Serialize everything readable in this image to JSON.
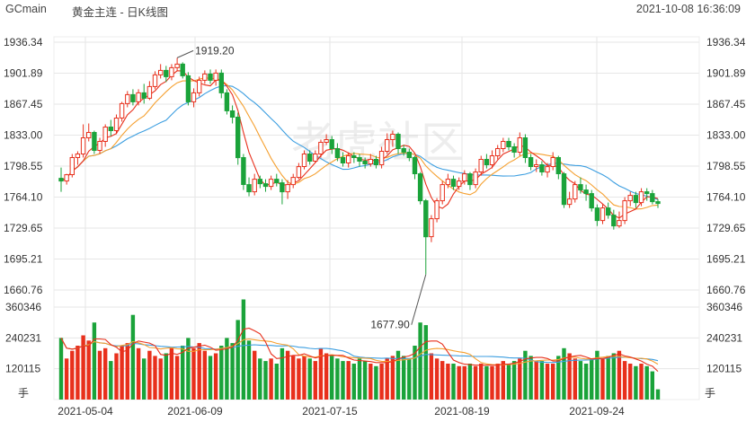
{
  "header": {
    "symbol": "GCmain",
    "name": "黄金主连 - 日K线图",
    "datetime": "2021-10-08 16:36:09"
  },
  "watermark": "老虎社区",
  "colors": {
    "up": "#e8301c",
    "down": "#1aa33a",
    "ma5": "#e8301c",
    "ma10": "#f5a030",
    "ma20": "#3c9ee0",
    "grid": "#e6e6e6"
  },
  "chart_data": {
    "type": "candlestick",
    "price_axis": {
      "ticks": [
        "1936.34",
        "1901.89",
        "1867.45",
        "1833.00",
        "1798.55",
        "1764.10",
        "1729.65",
        "1695.21",
        "1660.76"
      ],
      "min": 1660.76,
      "max": 1936.34
    },
    "volume_axis": {
      "ticks": [
        "360346",
        "240231",
        "120115"
      ],
      "unit": "手",
      "max": 360346
    },
    "date_labels": [
      "2021-05-04",
      "2021-06-09",
      "2021-07-15",
      "2021-08-19",
      "2021-09-24"
    ],
    "annotations": [
      {
        "text": "1919.20",
        "type": "high"
      },
      {
        "text": "1677.90",
        "type": "low"
      }
    ],
    "candles": [
      [
        1785,
        1782,
        1797,
        1770,
        240
      ],
      [
        1782,
        1789,
        1790,
        1778,
        160
      ],
      [
        1789,
        1808,
        1812,
        1786,
        190
      ],
      [
        1808,
        1812,
        1815,
        1800,
        210
      ],
      [
        1812,
        1830,
        1845,
        1808,
        250
      ],
      [
        1830,
        1836,
        1846,
        1826,
        230
      ],
      [
        1836,
        1816,
        1838,
        1812,
        300
      ],
      [
        1816,
        1826,
        1830,
        1812,
        190
      ],
      [
        1826,
        1842,
        1845,
        1820,
        200
      ],
      [
        1842,
        1838,
        1850,
        1832,
        150
      ],
      [
        1838,
        1852,
        1856,
        1834,
        180
      ],
      [
        1852,
        1868,
        1870,
        1848,
        210
      ],
      [
        1868,
        1878,
        1882,
        1864,
        220
      ],
      [
        1878,
        1870,
        1884,
        1866,
        330
      ],
      [
        1870,
        1880,
        1884,
        1866,
        200
      ],
      [
        1880,
        1874,
        1890,
        1868,
        160
      ],
      [
        1874,
        1887,
        1893,
        1872,
        190
      ],
      [
        1887,
        1900,
        1904,
        1884,
        170
      ],
      [
        1900,
        1905,
        1912,
        1896,
        160
      ],
      [
        1905,
        1898,
        1910,
        1892,
        180
      ],
      [
        1898,
        1908,
        1912,
        1894,
        200
      ],
      [
        1908,
        1912,
        1919,
        1904,
        170
      ],
      [
        1912,
        1899,
        1914,
        1896,
        210
      ],
      [
        1899,
        1870,
        1903,
        1866,
        240
      ],
      [
        1870,
        1880,
        1885,
        1864,
        200
      ],
      [
        1880,
        1894,
        1898,
        1876,
        220
      ],
      [
        1894,
        1901,
        1905,
        1890,
        190
      ],
      [
        1901,
        1894,
        1906,
        1890,
        170
      ],
      [
        1894,
        1902,
        1906,
        1888,
        180
      ],
      [
        1902,
        1880,
        1906,
        1874,
        210
      ],
      [
        1880,
        1860,
        1884,
        1856,
        240
      ],
      [
        1860,
        1853,
        1866,
        1846,
        220
      ],
      [
        1853,
        1808,
        1858,
        1800,
        310
      ],
      [
        1808,
        1778,
        1812,
        1772,
        390
      ],
      [
        1778,
        1770,
        1786,
        1765,
        230
      ],
      [
        1770,
        1784,
        1790,
        1766,
        190
      ],
      [
        1784,
        1779,
        1788,
        1774,
        160
      ],
      [
        1779,
        1776,
        1784,
        1770,
        150
      ],
      [
        1776,
        1784,
        1788,
        1772,
        160
      ],
      [
        1784,
        1780,
        1790,
        1776,
        140
      ],
      [
        1780,
        1770,
        1784,
        1756,
        200
      ],
      [
        1770,
        1778,
        1783,
        1762,
        190
      ],
      [
        1778,
        1786,
        1790,
        1774,
        170
      ],
      [
        1786,
        1798,
        1802,
        1784,
        160
      ],
      [
        1798,
        1812,
        1816,
        1795,
        170
      ],
      [
        1812,
        1804,
        1816,
        1800,
        160
      ],
      [
        1804,
        1812,
        1816,
        1802,
        150
      ],
      [
        1812,
        1825,
        1828,
        1808,
        200
      ],
      [
        1825,
        1828,
        1834,
        1822,
        180
      ],
      [
        1828,
        1818,
        1832,
        1812,
        170
      ],
      [
        1818,
        1808,
        1824,
        1804,
        160
      ],
      [
        1808,
        1802,
        1814,
        1798,
        150
      ],
      [
        1802,
        1810,
        1814,
        1797,
        150
      ],
      [
        1810,
        1808,
        1814,
        1802,
        140
      ],
      [
        1808,
        1804,
        1812,
        1798,
        160
      ],
      [
        1804,
        1801,
        1808,
        1796,
        150
      ],
      [
        1801,
        1806,
        1812,
        1798,
        140
      ],
      [
        1806,
        1800,
        1810,
        1796,
        130
      ],
      [
        1800,
        1815,
        1820,
        1796,
        140
      ],
      [
        1815,
        1828,
        1835,
        1812,
        160
      ],
      [
        1828,
        1834,
        1838,
        1820,
        170
      ],
      [
        1834,
        1818,
        1836,
        1812,
        190
      ],
      [
        1818,
        1814,
        1822,
        1810,
        170
      ],
      [
        1814,
        1808,
        1818,
        1804,
        160
      ],
      [
        1808,
        1790,
        1810,
        1784,
        210
      ],
      [
        1790,
        1760,
        1792,
        1756,
        300
      ],
      [
        1760,
        1720,
        1762,
        1678,
        290
      ],
      [
        1720,
        1740,
        1744,
        1714,
        180
      ],
      [
        1740,
        1760,
        1763,
        1736,
        160
      ],
      [
        1760,
        1778,
        1782,
        1756,
        150
      ],
      [
        1778,
        1784,
        1790,
        1774,
        140
      ],
      [
        1784,
        1776,
        1788,
        1772,
        140
      ],
      [
        1776,
        1782,
        1786,
        1772,
        130
      ],
      [
        1782,
        1790,
        1794,
        1778,
        130
      ],
      [
        1790,
        1778,
        1792,
        1772,
        140
      ],
      [
        1778,
        1792,
        1796,
        1774,
        130
      ],
      [
        1792,
        1806,
        1810,
        1788,
        140
      ],
      [
        1806,
        1800,
        1812,
        1796,
        130
      ],
      [
        1800,
        1810,
        1816,
        1796,
        130
      ],
      [
        1810,
        1818,
        1822,
        1806,
        140
      ],
      [
        1818,
        1826,
        1830,
        1814,
        150
      ],
      [
        1826,
        1820,
        1830,
        1816,
        140
      ],
      [
        1820,
        1814,
        1824,
        1808,
        150
      ],
      [
        1814,
        1830,
        1836,
        1810,
        160
      ],
      [
        1830,
        1808,
        1834,
        1802,
        190
      ],
      [
        1808,
        1798,
        1812,
        1794,
        170
      ],
      [
        1798,
        1800,
        1806,
        1792,
        150
      ],
      [
        1800,
        1792,
        1804,
        1788,
        150
      ],
      [
        1792,
        1798,
        1802,
        1786,
        140
      ],
      [
        1798,
        1808,
        1814,
        1794,
        140
      ],
      [
        1808,
        1790,
        1810,
        1784,
        170
      ],
      [
        1790,
        1756,
        1792,
        1752,
        200
      ],
      [
        1756,
        1762,
        1770,
        1752,
        180
      ],
      [
        1762,
        1778,
        1782,
        1758,
        160
      ],
      [
        1778,
        1772,
        1786,
        1768,
        150
      ],
      [
        1772,
        1768,
        1778,
        1760,
        140
      ],
      [
        1768,
        1752,
        1772,
        1748,
        160
      ],
      [
        1752,
        1738,
        1756,
        1732,
        190
      ],
      [
        1738,
        1752,
        1756,
        1734,
        160
      ],
      [
        1752,
        1744,
        1758,
        1740,
        170
      ],
      [
        1744,
        1732,
        1750,
        1728,
        180
      ],
      [
        1732,
        1738,
        1748,
        1730,
        190
      ],
      [
        1738,
        1760,
        1764,
        1734,
        150
      ],
      [
        1760,
        1766,
        1770,
        1754,
        140
      ],
      [
        1766,
        1758,
        1770,
        1752,
        130
      ],
      [
        1758,
        1770,
        1774,
        1754,
        140
      ],
      [
        1770,
        1768,
        1774,
        1760,
        130
      ],
      [
        1768,
        1759,
        1772,
        1756,
        110
      ],
      [
        1759,
        1757,
        1762,
        1752,
        40
      ]
    ]
  }
}
